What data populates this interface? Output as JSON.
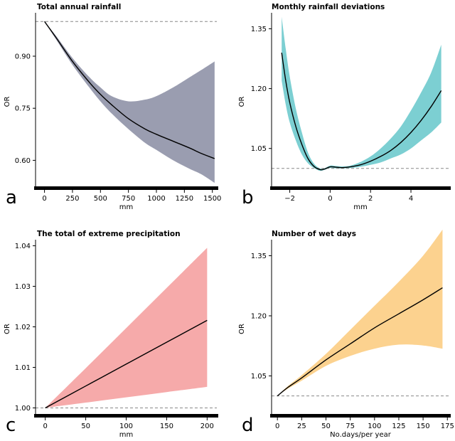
{
  "chart_data": [
    {
      "type": "line",
      "panel": "a",
      "title": "Total annual rainfall",
      "xlabel": "mm",
      "ylabel": "OR",
      "xlim": [
        -80,
        1540
      ],
      "ylim": [
        0.525,
        1.025
      ],
      "xticks": [
        "0",
        "250",
        "500",
        "750",
        "1000",
        "1250",
        "1500"
      ],
      "yticks": [
        "0.60",
        "0.75",
        "0.90"
      ],
      "reference_line": 1.0,
      "fill_color": "#9a9db0",
      "x": [
        0,
        100,
        250,
        400,
        500,
        600,
        750,
        900,
        1000,
        1150,
        1300,
        1400,
        1520
      ],
      "or": [
        1.0,
        0.955,
        0.885,
        0.825,
        0.79,
        0.76,
        0.72,
        0.69,
        0.675,
        0.655,
        0.635,
        0.62,
        0.605
      ],
      "lower": [
        1.0,
        0.95,
        0.875,
        0.81,
        0.77,
        0.735,
        0.69,
        0.65,
        0.63,
        0.6,
        0.575,
        0.56,
        0.535
      ],
      "upper": [
        1.0,
        0.96,
        0.895,
        0.84,
        0.81,
        0.785,
        0.77,
        0.775,
        0.785,
        0.81,
        0.84,
        0.86,
        0.885
      ]
    },
    {
      "type": "line",
      "panel": "b",
      "title": "Monthly rainfall deviations",
      "xlabel": "mm",
      "ylabel": "OR",
      "xlim": [
        -2.9,
        5.9
      ],
      "ylim": [
        0.955,
        1.39
      ],
      "xticks": [
        "−2",
        "0",
        "2",
        "4"
      ],
      "yticks": [
        "1.05",
        "1.20",
        "1.35"
      ],
      "reference_line": 1.0,
      "fill_color": "#7ccfd2",
      "x": [
        -2.4,
        -2.2,
        -2.0,
        -1.7,
        -1.4,
        -1.1,
        -0.8,
        -0.5,
        -0.3,
        0.0,
        0.3,
        0.6,
        1.0,
        1.5,
        2.0,
        2.5,
        3.0,
        3.5,
        4.0,
        4.5,
        5.0,
        5.5
      ],
      "or": [
        1.29,
        1.22,
        1.165,
        1.105,
        1.06,
        1.025,
        1.005,
        0.997,
        0.998,
        1.004,
        1.003,
        1.002,
        1.004,
        1.009,
        1.018,
        1.03,
        1.045,
        1.065,
        1.09,
        1.12,
        1.155,
        1.195
      ],
      "lower": [
        1.22,
        1.16,
        1.115,
        1.07,
        1.035,
        1.013,
        1.001,
        0.994,
        0.996,
        1.001,
        1.0,
        1.0,
        1.001,
        1.004,
        1.009,
        1.015,
        1.025,
        1.035,
        1.05,
        1.07,
        1.09,
        1.115
      ],
      "upper": [
        1.38,
        1.3,
        1.23,
        1.15,
        1.09,
        1.04,
        1.012,
        1.0,
        1.0,
        1.007,
        1.006,
        1.005,
        1.007,
        1.016,
        1.03,
        1.05,
        1.075,
        1.105,
        1.145,
        1.19,
        1.24,
        1.31
      ]
    },
    {
      "type": "line",
      "panel": "c",
      "title": "The total of extreme precipitation",
      "xlabel": "mm",
      "ylabel": "OR",
      "xlim": [
        -12,
        212
      ],
      "ylim": [
        0.9985,
        1.0415
      ],
      "xticks": [
        "0",
        "50",
        "100",
        "150",
        "200"
      ],
      "yticks": [
        "1.00",
        "1.01",
        "1.02",
        "1.03",
        "1.04"
      ],
      "reference_line": 1.0,
      "fill_color": "#f6aaaa",
      "x": [
        0,
        50,
        100,
        150,
        200
      ],
      "or": [
        1.0,
        1.0054,
        1.0108,
        1.0162,
        1.0216
      ],
      "lower": [
        1.0,
        1.0013,
        1.0026,
        1.0039,
        1.0052
      ],
      "upper": [
        1.0,
        1.0098,
        1.0197,
        1.0296,
        1.0395
      ]
    },
    {
      "type": "line",
      "panel": "d",
      "title": "Number of wet days",
      "xlabel": "No.days/per year",
      "ylabel": "OR",
      "xlim": [
        -6,
        177
      ],
      "ylim": [
        0.955,
        1.39
      ],
      "xticks": [
        "0",
        "25",
        "50",
        "75",
        "100",
        "125",
        "150",
        "175"
      ],
      "yticks": [
        "1.05",
        "1.20",
        "1.35"
      ],
      "reference_line": 1.0,
      "fill_color": "#fcd28f",
      "x": [
        0,
        10,
        25,
        50,
        75,
        100,
        125,
        150,
        170
      ],
      "or": [
        1.0,
        1.02,
        1.045,
        1.09,
        1.13,
        1.17,
        1.205,
        1.24,
        1.27
      ],
      "lower": [
        1.0,
        1.017,
        1.038,
        1.075,
        1.1,
        1.118,
        1.128,
        1.126,
        1.118
      ],
      "upper": [
        1.0,
        1.023,
        1.052,
        1.105,
        1.165,
        1.225,
        1.285,
        1.35,
        1.415
      ]
    }
  ]
}
